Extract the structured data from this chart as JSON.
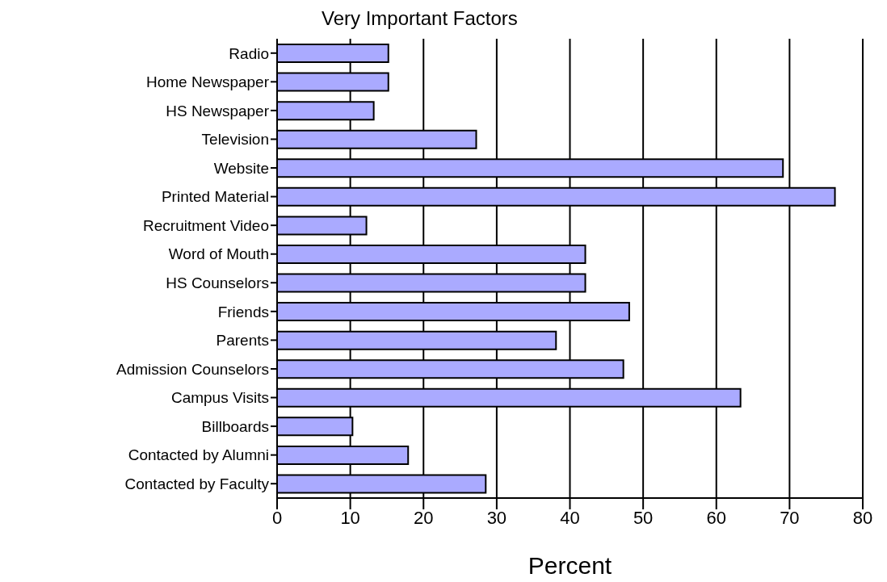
{
  "chart_data": {
    "type": "bar",
    "orientation": "horizontal",
    "title": "Very Important Factors",
    "xlabel": "Percent",
    "categories": [
      "Radio",
      "Home Newspaper",
      "HS Newspaper",
      "Television",
      "Website",
      "Printed Material",
      "Recruitment Video",
      "Word of Mouth",
      "HS Counselors",
      "Friends",
      "Parents",
      "Admission Counselors",
      "Campus Visits",
      "Billboards",
      "Contacted by Alumni",
      "Contacted by Faculty"
    ],
    "values": [
      15.2,
      15.2,
      13.2,
      27.2,
      69.1,
      76.2,
      12.2,
      42.1,
      42.1,
      48.1,
      38.1,
      47.3,
      63.3,
      10.3,
      17.9,
      28.5
    ],
    "color": "#aaaaff",
    "xlim": [
      0,
      80
    ],
    "xticks": [
      0,
      10,
      20,
      30,
      40,
      50,
      60,
      70,
      80
    ],
    "grid": "x",
    "legend": false
  }
}
